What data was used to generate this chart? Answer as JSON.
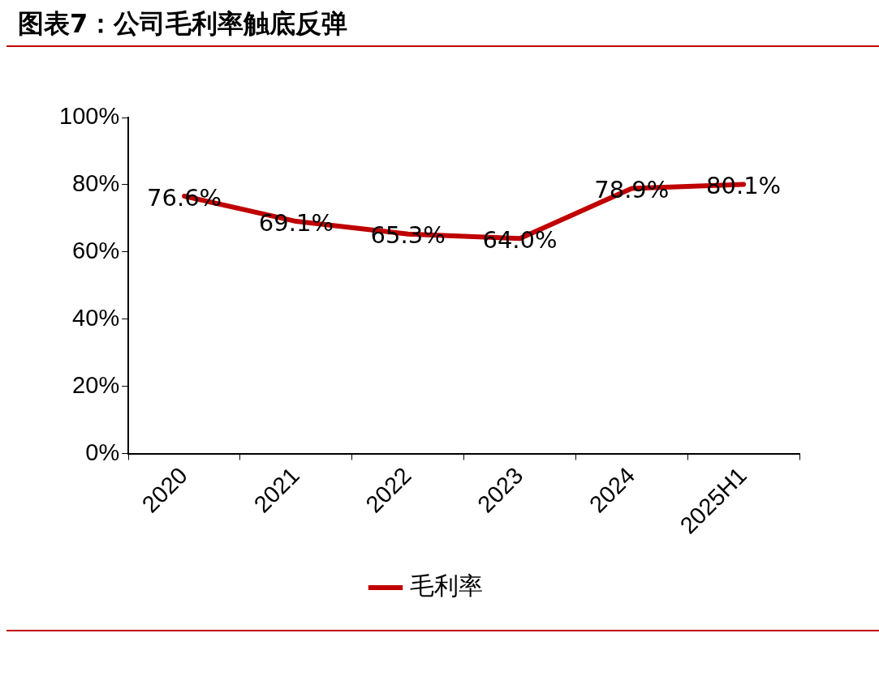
{
  "chart_data": {
    "type": "line",
    "title": "图表7：公司毛利率触底反弹",
    "categories": [
      "2020",
      "2021",
      "2022",
      "2023",
      "2024",
      "2025H1"
    ],
    "series": [
      {
        "name": "毛利率",
        "color": "#c00000",
        "values": [
          76.6,
          69.1,
          65.3,
          64.0,
          78.9,
          80.1
        ],
        "value_labels": [
          "76.6%",
          "69.1%",
          "65.3%",
          "64.0%",
          "78.9%",
          "80.1%"
        ]
      }
    ],
    "ylim": [
      0,
      100
    ],
    "yticks": [
      {
        "value": 0,
        "label": "0%"
      },
      {
        "value": 20,
        "label": "20%"
      },
      {
        "value": 40,
        "label": "40%"
      },
      {
        "value": 60,
        "label": "60%"
      },
      {
        "value": 80,
        "label": "80%"
      },
      {
        "value": 100,
        "label": "100%"
      }
    ],
    "grid": false,
    "legend": "bottom",
    "marker": "none",
    "line_style": "solid"
  }
}
